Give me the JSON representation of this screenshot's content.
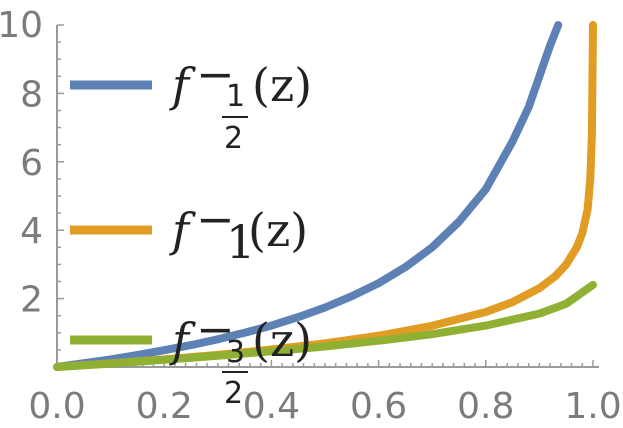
{
  "chart_data": {
    "type": "line",
    "title": "",
    "xlabel": "",
    "ylabel": "",
    "xlim": [
      0,
      1
    ],
    "ylim": [
      0,
      10
    ],
    "x_ticks": [
      "0.0",
      "0.2",
      "0.4",
      "0.6",
      "0.8",
      "1.0"
    ],
    "y_ticks": [
      "2",
      "4",
      "6",
      "8",
      "10"
    ],
    "grid": false,
    "legend_placement": "left",
    "series": [
      {
        "name": "f⁻½(z)",
        "legend": {
          "main": "f",
          "sup": "−",
          "sub_num": "1",
          "sub_den": "2",
          "arg": "(z)"
        },
        "color": "#5e81b5",
        "x": [
          0.0,
          0.05,
          0.1,
          0.15,
          0.2,
          0.25,
          0.3,
          0.35,
          0.4,
          0.45,
          0.5,
          0.55,
          0.6,
          0.65,
          0.7,
          0.75,
          0.8,
          0.85,
          0.88,
          0.9,
          0.92,
          0.935
        ],
        "y": [
          0.0,
          0.11,
          0.22,
          0.35,
          0.49,
          0.64,
          0.81,
          1.0,
          1.21,
          1.46,
          1.74,
          2.07,
          2.45,
          2.92,
          3.5,
          4.25,
          5.2,
          6.6,
          7.6,
          8.5,
          9.4,
          10.0
        ]
      },
      {
        "name": "f⁻1(z)",
        "legend": {
          "main": "f",
          "sup": "−",
          "sub": "1",
          "arg": "(z)"
        },
        "color": "#e19c24",
        "x": [
          0.0,
          0.1,
          0.2,
          0.3,
          0.4,
          0.5,
          0.6,
          0.7,
          0.8,
          0.85,
          0.9,
          0.93,
          0.95,
          0.97,
          0.98,
          0.99,
          0.995,
          0.998,
          1.0
        ],
        "y": [
          0.0,
          0.105,
          0.223,
          0.357,
          0.511,
          0.693,
          0.916,
          1.204,
          1.609,
          1.897,
          2.303,
          2.659,
          2.996,
          3.507,
          3.912,
          4.605,
          5.5,
          6.8,
          10.0
        ]
      },
      {
        "name": "f⁻3/2(z)",
        "legend": {
          "main": "f",
          "sup": "−",
          "sub_num": "3",
          "sub_den": "2",
          "arg": "(z)"
        },
        "color": "#8fb032",
        "x": [
          0.0,
          0.1,
          0.2,
          0.3,
          0.4,
          0.5,
          0.6,
          0.7,
          0.8,
          0.9,
          0.95,
          1.0
        ],
        "y": [
          0.0,
          0.1,
          0.21,
          0.33,
          0.46,
          0.6,
          0.77,
          0.96,
          1.21,
          1.56,
          1.85,
          2.4
        ]
      }
    ]
  }
}
